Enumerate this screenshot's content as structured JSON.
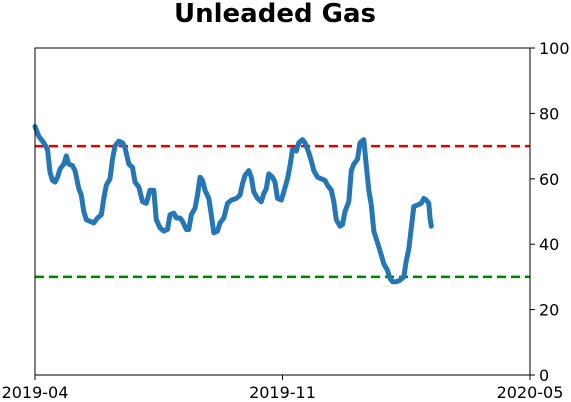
{
  "chart_data": {
    "type": "line",
    "title": "Unleaded Gas",
    "xlabel": "",
    "ylabel": "",
    "x_tick_labels": [
      "2019-04",
      "2019-11",
      "2020-05"
    ],
    "x_range": [
      "2019-04-01",
      "2020-05-01"
    ],
    "ylim": [
      0,
      100
    ],
    "y_ticks": [
      0,
      20,
      40,
      60,
      80,
      100
    ],
    "y_axis_side": "right",
    "grid": false,
    "reference_lines": [
      {
        "value": 70,
        "color": "#e00000",
        "style": "dashed"
      },
      {
        "value": 30,
        "color": "#008000",
        "style": "dashed"
      }
    ],
    "series": [
      {
        "color": "#2576b4",
        "points": [
          [
            "2019-04-01",
            76
          ],
          [
            "2019-04-04",
            73
          ],
          [
            "2019-04-08",
            71
          ],
          [
            "2019-04-11",
            69
          ],
          [
            "2019-04-13",
            62
          ],
          [
            "2019-04-15",
            59.5
          ],
          [
            "2019-04-17",
            59
          ],
          [
            "2019-04-19",
            60.5
          ],
          [
            "2019-04-21",
            63
          ],
          [
            "2019-04-24",
            64.5
          ],
          [
            "2019-04-26",
            67
          ],
          [
            "2019-04-28",
            64.5
          ],
          [
            "2019-05-01",
            64
          ],
          [
            "2019-05-03",
            62.5
          ],
          [
            "2019-05-06",
            57
          ],
          [
            "2019-05-08",
            55
          ],
          [
            "2019-05-10",
            50
          ],
          [
            "2019-05-12",
            47.5
          ],
          [
            "2019-05-15",
            47
          ],
          [
            "2019-05-18",
            46.5
          ],
          [
            "2019-05-21",
            48
          ],
          [
            "2019-05-24",
            49
          ],
          [
            "2019-05-26",
            54
          ],
          [
            "2019-05-28",
            58
          ],
          [
            "2019-05-31",
            60
          ],
          [
            "2019-06-02",
            66
          ],
          [
            "2019-06-04",
            70
          ],
          [
            "2019-06-07",
            71.5
          ],
          [
            "2019-06-10",
            71
          ],
          [
            "2019-06-12",
            69.5
          ],
          [
            "2019-06-15",
            64.5
          ],
          [
            "2019-06-18",
            63.5
          ],
          [
            "2019-06-20",
            59
          ],
          [
            "2019-06-23",
            57.5
          ],
          [
            "2019-06-26",
            53
          ],
          [
            "2019-06-29",
            52.5
          ],
          [
            "2019-07-02",
            56.5
          ],
          [
            "2019-07-05",
            56.5
          ],
          [
            "2019-07-07",
            47.5
          ],
          [
            "2019-07-10",
            45
          ],
          [
            "2019-07-13",
            44
          ],
          [
            "2019-07-16",
            44.5
          ],
          [
            "2019-07-18",
            49
          ],
          [
            "2019-07-21",
            49.5
          ],
          [
            "2019-07-23",
            48
          ],
          [
            "2019-07-26",
            48
          ],
          [
            "2019-07-28",
            47
          ],
          [
            "2019-07-31",
            44.5
          ],
          [
            "2019-08-02",
            44.5
          ],
          [
            "2019-08-04",
            49
          ],
          [
            "2019-08-07",
            51
          ],
          [
            "2019-08-09",
            55
          ],
          [
            "2019-08-11",
            60.5
          ],
          [
            "2019-08-13",
            59.5
          ],
          [
            "2019-08-15",
            56.5
          ],
          [
            "2019-08-18",
            54
          ],
          [
            "2019-08-20",
            49
          ],
          [
            "2019-08-22",
            43.5
          ],
          [
            "2019-08-25",
            44
          ],
          [
            "2019-08-27",
            46.5
          ],
          [
            "2019-08-30",
            48
          ],
          [
            "2019-09-02",
            52.5
          ],
          [
            "2019-09-05",
            53.5
          ],
          [
            "2019-09-09",
            54
          ],
          [
            "2019-09-12",
            55
          ],
          [
            "2019-09-14",
            58.5
          ],
          [
            "2019-09-16",
            61
          ],
          [
            "2019-09-19",
            62.5
          ],
          [
            "2019-09-21",
            60.5
          ],
          [
            "2019-09-23",
            56
          ],
          [
            "2019-09-26",
            54
          ],
          [
            "2019-09-29",
            53
          ],
          [
            "2019-10-01",
            55.5
          ],
          [
            "2019-10-03",
            57
          ],
          [
            "2019-10-05",
            61.5
          ],
          [
            "2019-10-08",
            60.5
          ],
          [
            "2019-10-10",
            59
          ],
          [
            "2019-10-12",
            54
          ],
          [
            "2019-10-15",
            53.5
          ],
          [
            "2019-10-17",
            56
          ],
          [
            "2019-10-20",
            60
          ],
          [
            "2019-10-22",
            64
          ],
          [
            "2019-10-24",
            69
          ],
          [
            "2019-10-27",
            68.5
          ],
          [
            "2019-10-29",
            71
          ],
          [
            "2019-11-01",
            72
          ],
          [
            "2019-11-03",
            71
          ],
          [
            "2019-11-06",
            68
          ],
          [
            "2019-11-08",
            65.5
          ],
          [
            "2019-11-10",
            62.5
          ],
          [
            "2019-11-13",
            60.5
          ],
          [
            "2019-11-16",
            60
          ],
          [
            "2019-11-19",
            59.5
          ],
          [
            "2019-11-21",
            58
          ],
          [
            "2019-11-24",
            56.5
          ],
          [
            "2019-11-26",
            53
          ],
          [
            "2019-11-28",
            47.5
          ],
          [
            "2019-12-01",
            45.5
          ],
          [
            "2019-12-03",
            46
          ],
          [
            "2019-12-05",
            50
          ],
          [
            "2019-12-08",
            53
          ],
          [
            "2019-12-10",
            62.5
          ],
          [
            "2019-12-12",
            64.5
          ],
          [
            "2019-12-15",
            66
          ],
          [
            "2019-12-17",
            71
          ],
          [
            "2019-12-20",
            72
          ],
          [
            "2019-12-22",
            64
          ],
          [
            "2019-12-24",
            56.5
          ],
          [
            "2019-12-26",
            52
          ],
          [
            "2019-12-28",
            44
          ],
          [
            "2019-12-31",
            40.5
          ],
          [
            "2020-01-02",
            38
          ],
          [
            "2020-01-05",
            34
          ],
          [
            "2020-01-08",
            32
          ],
          [
            "2020-01-10",
            29.5
          ],
          [
            "2020-01-12",
            28.5
          ],
          [
            "2020-01-15",
            28.5
          ],
          [
            "2020-01-18",
            29
          ],
          [
            "2020-01-21",
            30
          ],
          [
            "2020-01-23",
            35
          ],
          [
            "2020-01-25",
            38.5
          ],
          [
            "2020-01-27",
            45
          ],
          [
            "2020-01-29",
            51.5
          ],
          [
            "2020-02-01",
            52
          ],
          [
            "2020-02-04",
            52.5
          ],
          [
            "2020-02-06",
            54
          ],
          [
            "2020-02-08",
            53.5
          ],
          [
            "2020-02-10",
            52.5
          ],
          [
            "2020-02-11",
            48
          ],
          [
            "2020-02-12",
            45.5
          ]
        ]
      }
    ]
  }
}
